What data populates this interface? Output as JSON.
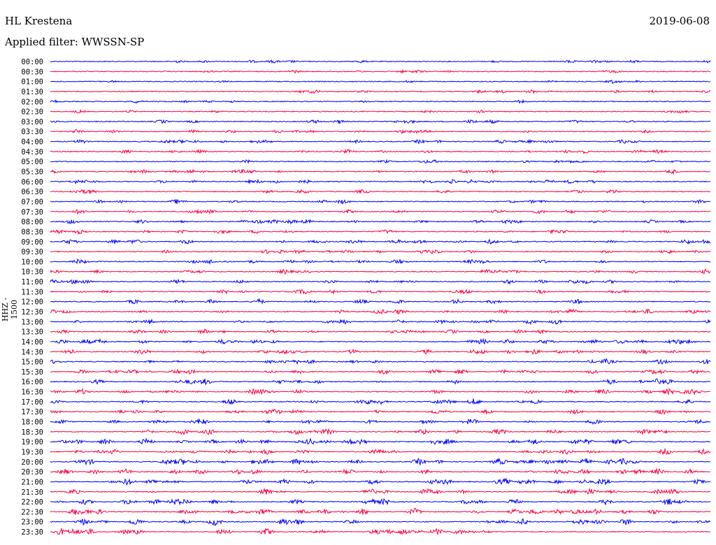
{
  "header": {
    "station": "HL Krestena",
    "date": "2019-06-08",
    "filter": "Applied filter: WWSSN-SP"
  },
  "chart_data": {
    "type": "line",
    "title": "HL Krestena",
    "ylabel": "HHZ - 1500",
    "row_minutes": 30,
    "row_labels": [
      "00:00",
      "00:30",
      "01:00",
      "01:30",
      "02:00",
      "02:30",
      "03:00",
      "03:30",
      "04:00",
      "04:30",
      "05:00",
      "05:30",
      "06:00",
      "06:30",
      "07:00",
      "07:30",
      "08:00",
      "08:30",
      "09:00",
      "09:30",
      "10:00",
      "10:30",
      "11:00",
      "11:30",
      "12:00",
      "12:30",
      "13:00",
      "13:30",
      "14:00",
      "14:30",
      "15:00",
      "15:30",
      "16:00",
      "16:30",
      "17:00",
      "17:30",
      "18:00",
      "18:30",
      "19:00",
      "19:30",
      "20:00",
      "20:30",
      "21:00",
      "21:30",
      "22:00",
      "22:30",
      "23:00",
      "23:30"
    ],
    "colors": [
      "#0000ff",
      "#ff0044"
    ],
    "events": [
      {
        "row": 0,
        "minute": 26.2,
        "amp": 9
      },
      {
        "row": 2,
        "minute": 8.4,
        "amp": 6
      },
      {
        "row": 3,
        "minute": 26.6,
        "amp": 5
      },
      {
        "row": 5,
        "minute": 5.2,
        "amp": 6
      },
      {
        "row": 6,
        "minute": 19.1,
        "amp": 28
      },
      {
        "row": 7,
        "minute": 11.6,
        "amp": 20
      },
      {
        "row": 7,
        "minute": 28.0,
        "amp": 20
      },
      {
        "row": 8,
        "minute": 0.8,
        "amp": 25
      },
      {
        "row": 8,
        "minute": 20.0,
        "amp": 14
      },
      {
        "row": 9,
        "minute": 11.6,
        "amp": 14
      },
      {
        "row": 10,
        "minute": 0.8,
        "amp": 14
      },
      {
        "row": 10,
        "minute": 20.2,
        "amp": 14
      },
      {
        "row": 11,
        "minute": 26.6,
        "amp": 10
      },
      {
        "row": 13,
        "minute": 13.3,
        "amp": 20
      },
      {
        "row": 14,
        "minute": 12.3,
        "amp": 12
      },
      {
        "row": 15,
        "minute": 1.6,
        "amp": 10
      },
      {
        "row": 15,
        "minute": 13.6,
        "amp": 10
      },
      {
        "row": 15,
        "minute": 27.0,
        "amp": 14
      },
      {
        "row": 19,
        "minute": 5.2,
        "amp": 20
      },
      {
        "row": 19,
        "minute": 21.0,
        "amp": 20
      },
      {
        "row": 20,
        "minute": 5.2,
        "amp": 22
      },
      {
        "row": 20,
        "minute": 21.2,
        "amp": 14
      },
      {
        "row": 25,
        "minute": 0.8,
        "amp": 14
      },
      {
        "row": 26,
        "minute": 18.0,
        "amp": 18
      },
      {
        "row": 26,
        "minute": 21.8,
        "amp": 24
      },
      {
        "row": 28,
        "minute": 1.4,
        "amp": 7
      },
      {
        "row": 30,
        "minute": 7.6,
        "amp": 7
      },
      {
        "row": 33,
        "minute": 20.0,
        "amp": 12
      },
      {
        "row": 35,
        "minute": 3.5,
        "amp": 12
      },
      {
        "row": 38,
        "minute": 19.4,
        "amp": 26
      },
      {
        "row": 39,
        "minute": 28.7,
        "amp": 24
      },
      {
        "row": 44,
        "minute": 23.0,
        "amp": 8
      },
      {
        "row": 47,
        "minute": 7.9,
        "amp": 8
      }
    ]
  }
}
